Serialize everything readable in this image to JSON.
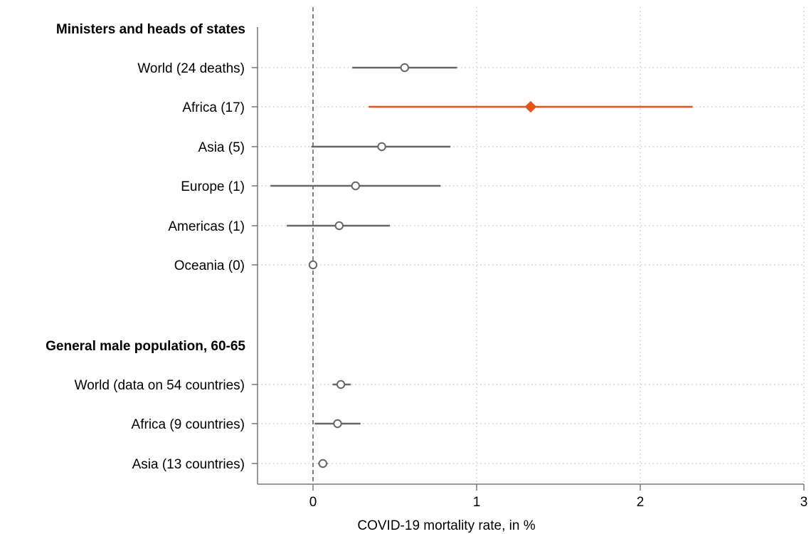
{
  "chart_data": {
    "type": "dot_whisker",
    "xlabel": "COVID-19 mortality rate, in %",
    "xlim": [
      -0.4,
      3.0
    ],
    "xticks": [
      0,
      1,
      2,
      3
    ],
    "xtick_labels": [
      "0",
      "1",
      "2",
      "3"
    ],
    "reference_line_x": 0,
    "grid": "dotted",
    "colors": {
      "default": "#666666",
      "highlight": "#e8521b"
    },
    "groups": [
      {
        "label": "Ministers and heads of states",
        "rows": [
          {
            "label": "World (24 deaths)",
            "estimate": 0.56,
            "lower": 0.24,
            "upper": 0.88,
            "marker": "circle",
            "highlight": false
          },
          {
            "label": "Africa (17)",
            "estimate": 1.33,
            "lower": 0.34,
            "upper": 2.32,
            "marker": "diamond",
            "highlight": true
          },
          {
            "label": "Asia (5)",
            "estimate": 0.42,
            "lower": -0.01,
            "upper": 0.84,
            "marker": "circle",
            "highlight": false
          },
          {
            "label": "Europe (1)",
            "estimate": 0.26,
            "lower": -0.26,
            "upper": 0.78,
            "marker": "circle",
            "highlight": false
          },
          {
            "label": "Americas (1)",
            "estimate": 0.16,
            "lower": -0.16,
            "upper": 0.47,
            "marker": "circle",
            "highlight": false
          },
          {
            "label": "Oceania (0)",
            "estimate": 0.0,
            "lower": 0.0,
            "upper": 0.0,
            "marker": "circle",
            "highlight": false
          }
        ]
      },
      {
        "label": "General male population, 60-65",
        "rows": [
          {
            "label": "World (data on 54 countries)",
            "estimate": 0.17,
            "lower": 0.12,
            "upper": 0.23,
            "marker": "circle",
            "highlight": false
          },
          {
            "label": "Africa (9 countries)",
            "estimate": 0.15,
            "lower": 0.01,
            "upper": 0.29,
            "marker": "circle",
            "highlight": false
          },
          {
            "label": "Asia (13 countries)",
            "estimate": 0.06,
            "lower": 0.03,
            "upper": 0.09,
            "marker": "circle",
            "highlight": false
          }
        ]
      }
    ]
  }
}
